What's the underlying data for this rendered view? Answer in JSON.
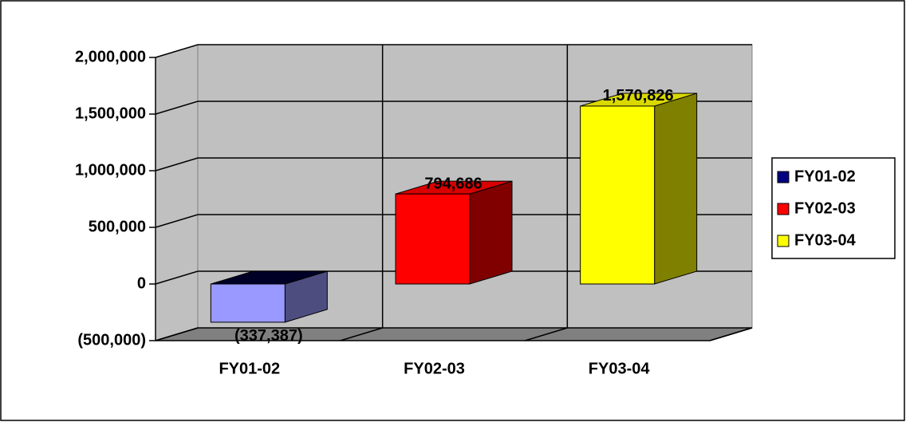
{
  "chart_data": {
    "type": "bar3d",
    "categories": [
      "FY01-02",
      "FY02-03",
      "FY03-04"
    ],
    "values": [
      -337387,
      794686,
      1570826
    ],
    "value_labels": [
      "(337,387)",
      "794,686",
      "1,570,826"
    ],
    "colors": [
      "#000080",
      "#ff0000",
      "#ffff00"
    ],
    "negative_color": "#9999ff",
    "ylim": [
      -500000,
      2000000
    ],
    "yticks": [
      {
        "value": -500000,
        "label": "(500,000)"
      },
      0,
      {
        "value": 500000,
        "label": "500,000"
      },
      {
        "value": 1000000,
        "label": "1,000,000"
      },
      {
        "value": 1500000,
        "label": "1,500,000"
      },
      {
        "value": 2000000,
        "label": "2,000,000"
      }
    ],
    "grid": true,
    "legend": "right"
  }
}
